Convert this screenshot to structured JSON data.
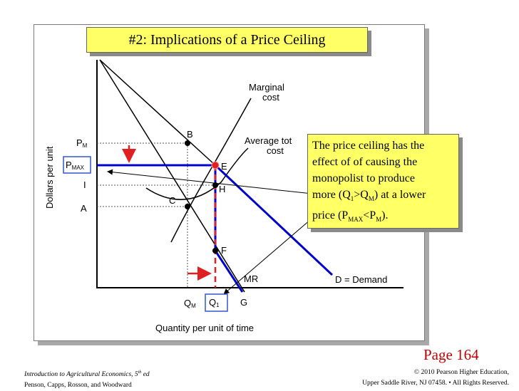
{
  "title": "#2: Implications of a Price Ceiling",
  "note": {
    "line1": "The price ceiling has the",
    "line2": "effect of of causing the",
    "line3": "monopolist to produce",
    "line4_a": "more (Q",
    "line4_sub1": "1",
    "line4_b": ">Q",
    "line4_sub2": "M",
    "line4_c": ") at a lower",
    "line5_a": "price (P",
    "line5_sub1": "MAX",
    "line5_b": "<P",
    "line5_sub2": "M",
    "line5_c": ")."
  },
  "diagram": {
    "y_axis_label": "Dollars per unit",
    "x_axis_label": "Quantity per unit of time",
    "labels": {
      "pm_main": "P",
      "pm_sub": "M",
      "pmax_main": "P",
      "pmax_sub": "MAX",
      "i": "I",
      "a": "A",
      "b": "B",
      "c": "C",
      "e": "E",
      "h": "H",
      "f": "F",
      "g": "G",
      "qm_main": "Q",
      "qm_sub": "M",
      "q1_main": "Q",
      "q1_sub": "1",
      "mc_line1": "Marginal",
      "mc_line2": "cost",
      "ac_line1": "Average tot",
      "ac_line2": "cost",
      "mr": "MR",
      "demand": "D = Demand"
    },
    "colors": {
      "ceiling_line": "#0000cc",
      "arrow": "#e02020",
      "dashed": "#e02020"
    }
  },
  "page_number": "Page 164",
  "footer": {
    "left_line1": "Introduction to Agricultural Economics, 5",
    "left_line1_sup": "th",
    "left_line1_end": " ed",
    "left_line2": "Penson, Capps, Rosson, and Woodward",
    "right_line1": "© 2010 Pearson Higher Education,",
    "right_line2": "Upper Saddle River, NJ 07458. • All Rights Reserved."
  }
}
